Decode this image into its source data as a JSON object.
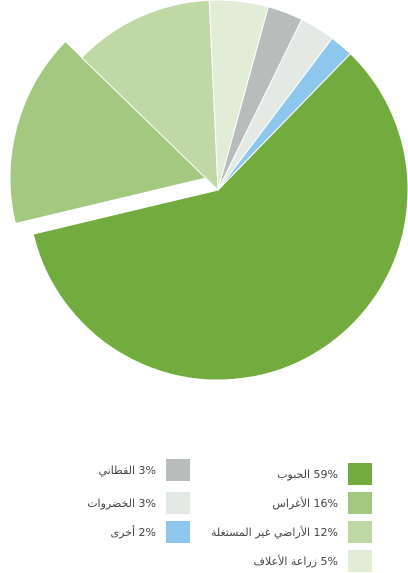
{
  "chart_data": {
    "type": "pie",
    "title": "",
    "categories": [
      "الحبوب",
      "الأغراس",
      "الأراضي غير المستغلة",
      "زراعة الأعلاف",
      "القطاني",
      "الخضروات",
      "أخرى"
    ],
    "values": [
      59,
      16,
      12,
      5,
      3,
      3,
      2
    ],
    "slice_labels": [
      "59% الحبوب",
      "16% الأغراس",
      "12% الأراضي غير المستغلة",
      "5% زراعة الأعلاف",
      "3% القطاني",
      "3% الخضروات",
      "2% أخرى"
    ],
    "colors": [
      "#72ab3e",
      "#a3c880",
      "#bfd8a5",
      "#e2edd7",
      "#b8bcba",
      "#e3e9e4",
      "#8ec7ee"
    ],
    "legend_position": "bottom",
    "exploded_slice": "الأغراس"
  }
}
